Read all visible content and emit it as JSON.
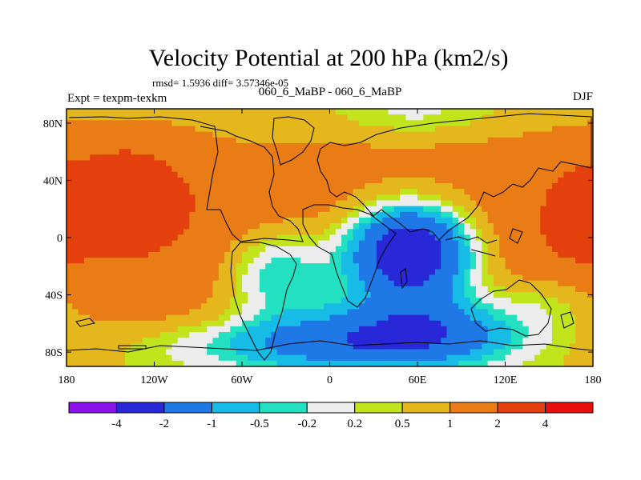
{
  "chart_data": {
    "type": "contour_map",
    "title": "Velocity Potential at 200 hPa (km2/s)",
    "stats_line": "rmsd= 1.5936  diff= 3.57346e-05",
    "left_label": "Expt = texpm-texkm",
    "center_label": "060_6_MaBP - 060_6_MaBP",
    "right_label": "DJF",
    "x_axis": {
      "range": [
        -180,
        180
      ],
      "ticks": [
        {
          "value": -180,
          "label": "180"
        },
        {
          "value": -120,
          "label": "120W"
        },
        {
          "value": -60,
          "label": "60W"
        },
        {
          "value": 0,
          "label": "0"
        },
        {
          "value": 60,
          "label": "60E"
        },
        {
          "value": 120,
          "label": "120E"
        },
        {
          "value": 180,
          "label": "180"
        }
      ]
    },
    "y_axis": {
      "range": [
        -90,
        90
      ],
      "ticks": [
        {
          "value": 80,
          "label": "80N"
        },
        {
          "value": 40,
          "label": "40N"
        },
        {
          "value": 0,
          "label": "0"
        },
        {
          "value": -40,
          "label": "40S"
        },
        {
          "value": -80,
          "label": "80S"
        }
      ]
    },
    "levels": [
      "-4",
      "-2",
      "-1",
      "-0.5",
      "-0.2",
      "0.2",
      "0.5",
      "1",
      "2",
      "4"
    ],
    "colors": [
      "#8a12ea",
      "#2828d8",
      "#1e78e6",
      "#16bce6",
      "#22e0c0",
      "#ececec",
      "#c2e41c",
      "#e4b81c",
      "#ea7c16",
      "#e4400e",
      "#e80e0e"
    ],
    "centers": [
      {
        "lon": -140,
        "lat": 30,
        "value": 3.0,
        "sx": 38,
        "sy": 32
      },
      {
        "lon": 172,
        "lat": 15,
        "value": 2.6,
        "sx": 22,
        "sy": 28
      },
      {
        "lon": 55,
        "lat": -10,
        "value": -3.6,
        "sx": 45,
        "sy": 35
      },
      {
        "lon": 60,
        "lat": -62,
        "value": -0.9,
        "sx": 70,
        "sy": 25
      },
      {
        "lon": 0,
        "lat": -75,
        "value": -0.7,
        "sx": 120,
        "sy": 20
      },
      {
        "lon": -35,
        "lat": -25,
        "value": -0.8,
        "sx": 40,
        "sy": 35
      },
      {
        "lon": -45,
        "lat": 60,
        "value": 1.0,
        "sx": 60,
        "sy": 30
      },
      {
        "lon": 60,
        "lat": 85,
        "value": 0.5,
        "sx": 60,
        "sy": 18
      },
      {
        "lon": 150,
        "lat": -45,
        "value": 0.4,
        "sx": 40,
        "sy": 22
      }
    ],
    "field": {
      "background": 1.6,
      "equator_weight": 0.1
    }
  }
}
